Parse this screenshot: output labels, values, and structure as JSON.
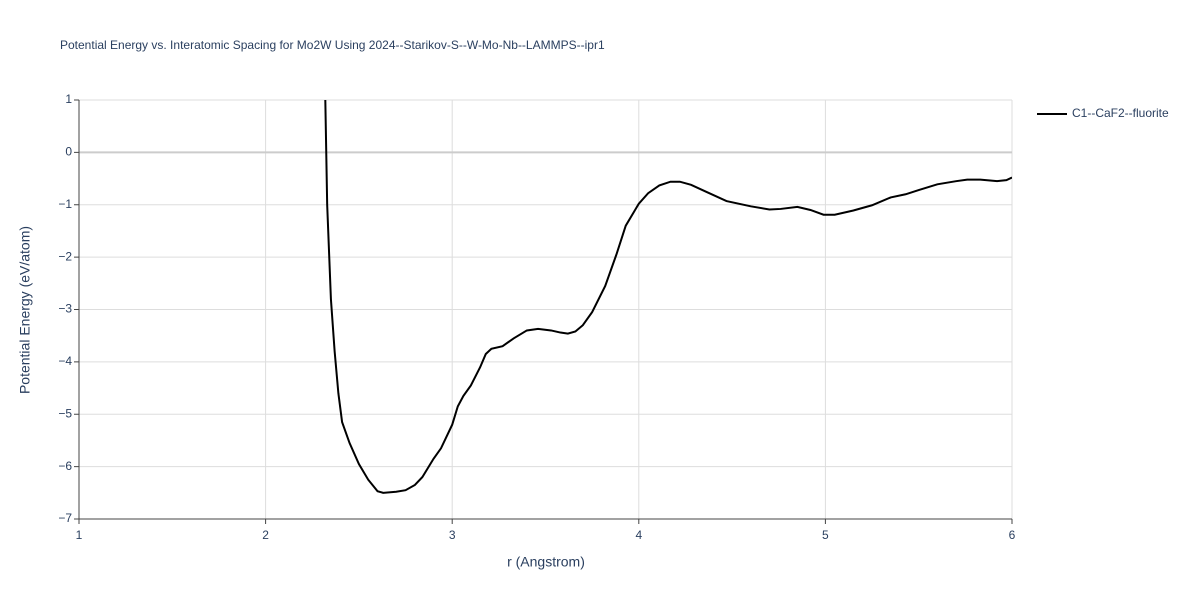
{
  "chart_data": {
    "type": "line",
    "title": "Potential Energy vs. Interatomic Spacing for Mo2W Using 2024--Starikov-S--W-Mo-Nb--LAMMPS--ipr1",
    "xlabel": "r (Angstrom)",
    "ylabel": "Potential Energy (eV/atom)",
    "xlim": [
      1,
      6
    ],
    "ylim": [
      -7,
      1
    ],
    "xticks": [
      1,
      2,
      3,
      4,
      5,
      6
    ],
    "yticks": [
      1,
      0,
      {
        "value": -1,
        "label": "−1"
      },
      {
        "value": -2,
        "label": "−2"
      },
      {
        "value": -3,
        "label": "−3"
      },
      {
        "value": -4,
        "label": "−4"
      },
      {
        "value": -5,
        "label": "−5"
      },
      {
        "value": -6,
        "label": "−6"
      },
      {
        "value": -7,
        "label": "−7"
      }
    ],
    "grid": true,
    "legend": "upper right",
    "series": [
      {
        "name": "C1--CaF2--fluorite",
        "color": "#000000",
        "x": [
          2.32,
          2.33,
          2.35,
          2.37,
          2.39,
          2.41,
          2.45,
          2.5,
          2.55,
          2.6,
          2.63,
          2.7,
          2.75,
          2.8,
          2.84,
          2.9,
          2.94,
          3.0,
          3.03,
          3.06,
          3.1,
          3.15,
          3.18,
          3.21,
          3.27,
          3.33,
          3.4,
          3.46,
          3.53,
          3.58,
          3.62,
          3.66,
          3.7,
          3.75,
          3.82,
          3.88,
          3.93,
          4.0,
          4.05,
          4.11,
          4.17,
          4.22,
          4.28,
          4.36,
          4.47,
          4.6,
          4.7,
          4.76,
          4.85,
          4.92,
          4.99,
          5.05,
          5.15,
          5.25,
          5.35,
          5.43,
          5.5,
          5.6,
          5.7,
          5.76,
          5.83,
          5.92,
          5.97,
          6.0
        ],
        "values": [
          1,
          -1,
          -2.8,
          -3.8,
          -4.6,
          -5.15,
          -5.55,
          -5.95,
          -6.25,
          -6.47,
          -6.5,
          -6.48,
          -6.45,
          -6.35,
          -6.2,
          -5.85,
          -5.65,
          -5.2,
          -4.85,
          -4.65,
          -4.45,
          -4.1,
          -3.85,
          -3.75,
          -3.7,
          -3.55,
          -3.4,
          -3.37,
          -3.4,
          -3.44,
          -3.46,
          -3.42,
          -3.3,
          -3.05,
          -2.55,
          -1.95,
          -1.4,
          -0.98,
          -0.78,
          -0.63,
          -0.56,
          -0.56,
          -0.62,
          -0.75,
          -0.93,
          -1.03,
          -1.09,
          -1.08,
          -1.04,
          -1.1,
          -1.19,
          -1.19,
          -1.11,
          -1.01,
          -0.86,
          -0.8,
          -0.72,
          -0.61,
          -0.55,
          -0.52,
          -0.52,
          -0.55,
          -0.53,
          -0.48
        ]
      }
    ]
  }
}
